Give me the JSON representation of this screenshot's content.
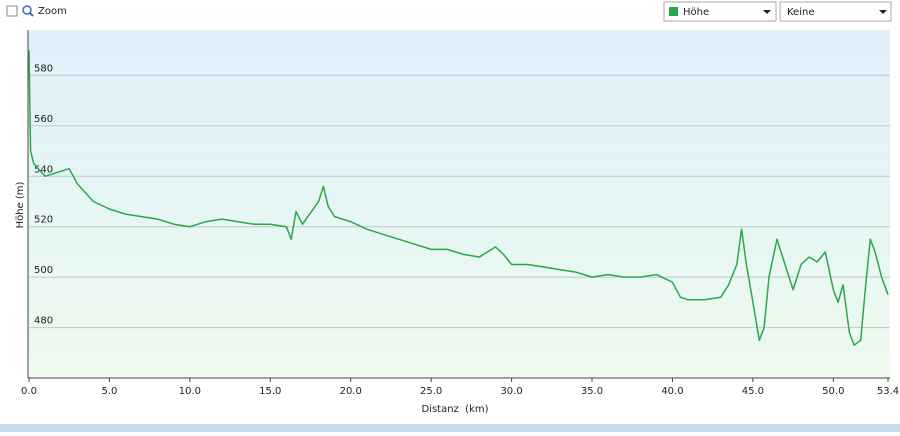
{
  "toolbar": {
    "zoom_label": "Zoom",
    "secondary_select": "Keine"
  },
  "chart_data": {
    "type": "line",
    "x_label": "Distanz  (km)",
    "y_label": "Höhe (m)",
    "x": [
      0,
      0.1,
      0.3,
      1,
      2,
      2.5,
      3,
      4,
      5,
      6,
      7,
      8,
      9,
      10,
      11,
      12,
      13,
      14,
      15,
      16,
      16.3,
      16.6,
      17,
      18,
      18.3,
      18.6,
      19,
      20,
      21,
      22,
      23,
      24,
      25,
      26,
      27,
      28,
      29,
      29.5,
      30,
      31,
      32,
      33,
      34,
      35,
      36,
      37,
      38,
      39,
      40,
      40.5,
      41,
      42,
      43,
      43.5,
      44,
      44.3,
      44.6,
      45,
      45.4,
      45.7,
      46,
      46.5,
      47,
      47.5,
      48,
      48.5,
      49,
      49.5,
      50,
      50.3,
      50.6,
      51,
      51.3,
      51.7,
      52,
      52.3,
      52.6,
      53,
      53.4
    ],
    "series": [
      {
        "name": "Höhe",
        "color": "#2aa84a",
        "values": [
          590,
          550,
          545,
          540,
          542,
          543,
          537,
          530,
          527,
          525,
          524,
          523,
          521,
          520,
          522,
          523,
          522,
          521,
          521,
          520,
          515,
          526,
          521,
          530,
          536,
          528,
          524,
          522,
          519,
          517,
          515,
          513,
          511,
          511,
          509,
          508,
          512,
          509,
          505,
          505,
          504,
          503,
          502,
          500,
          501,
          500,
          500,
          501,
          498,
          492,
          491,
          491,
          492,
          497,
          505,
          519,
          505,
          490,
          475,
          480,
          500,
          515,
          505,
          495,
          505,
          508,
          506,
          510,
          495,
          490,
          497,
          478,
          473,
          475,
          496,
          515,
          510,
          500,
          493
        ]
      }
    ],
    "xlim": [
      0,
      53.4
    ],
    "ylim": [
      460,
      598
    ],
    "xticks": [
      {
        "value": 0,
        "label": "0.0"
      },
      {
        "value": 5,
        "label": "5.0"
      },
      {
        "value": 10,
        "label": "10.0"
      },
      {
        "value": 15,
        "label": "15.0"
      },
      {
        "value": 20,
        "label": "20.0"
      },
      {
        "value": 25,
        "label": "25.0"
      },
      {
        "value": 30,
        "label": "30.0"
      },
      {
        "value": 35,
        "label": "35.0"
      },
      {
        "value": 40,
        "label": "40.0"
      },
      {
        "value": 45,
        "label": "45.0"
      },
      {
        "value": 50,
        "label": "50.0"
      },
      53.4
    ],
    "yticks": [
      480,
      500,
      520,
      540,
      560,
      580
    ],
    "grid": true
  }
}
